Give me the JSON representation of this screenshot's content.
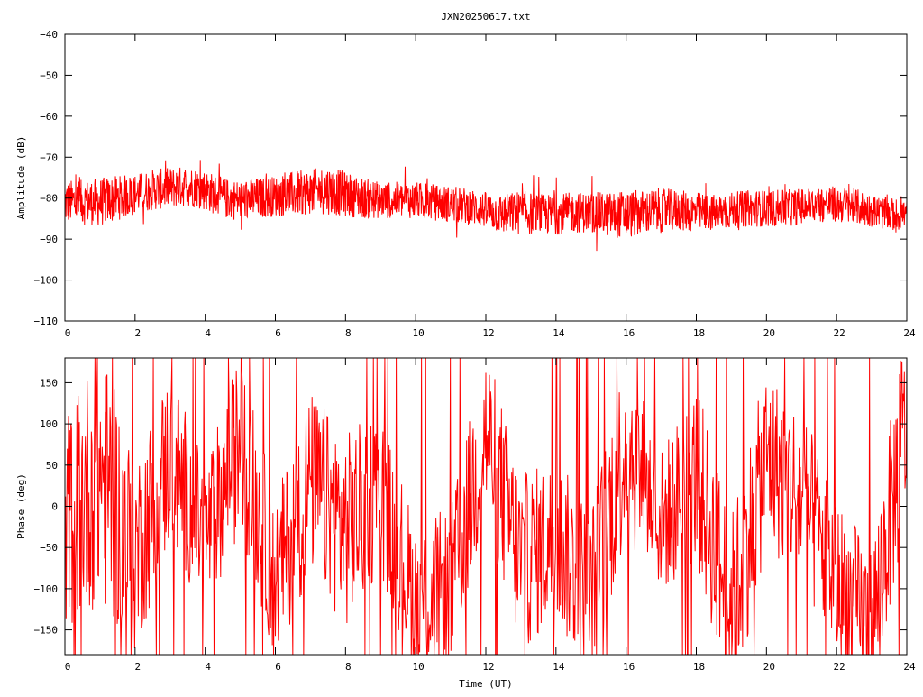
{
  "colors": {
    "series": "#ff0000",
    "axis": "#000000",
    "background": "#ffffff"
  },
  "chart_data": [
    {
      "type": "line",
      "title": "JXN20250617.txt",
      "xlabel": "",
      "ylabel": "Amplitude (dB)",
      "xlim": [
        0,
        24
      ],
      "ylim": [
        -110,
        -40
      ],
      "xticks": [
        0,
        2,
        4,
        6,
        8,
        10,
        12,
        14,
        16,
        18,
        20,
        22,
        24
      ],
      "yticks": [
        -110,
        -100,
        -90,
        -80,
        -70,
        -60,
        -50,
        -40
      ],
      "grid": false,
      "series": [
        {
          "color": "#ff0000",
          "x": [
            0,
            0.5,
            1,
            1.5,
            2,
            2.5,
            3,
            3.5,
            4,
            4.5,
            5,
            5.5,
            6,
            6.5,
            7,
            7.5,
            8,
            8.5,
            9,
            9.5,
            10,
            10.5,
            11,
            11.5,
            12,
            12.5,
            13,
            13.5,
            14,
            14.5,
            15,
            15.5,
            16,
            16.5,
            17,
            17.5,
            18,
            18.5,
            19,
            19.5,
            20,
            20.5,
            21,
            21.5,
            22,
            22.5,
            23,
            23.5,
            24
          ],
          "center": [
            -81,
            -81,
            -81,
            -80,
            -79,
            -78,
            -77.5,
            -77,
            -78,
            -80,
            -80.5,
            -80,
            -79.5,
            -79,
            -78.5,
            -78,
            -79,
            -80,
            -80.5,
            -80.5,
            -80.5,
            -81,
            -81.5,
            -82,
            -83,
            -84,
            -83.5,
            -84,
            -84,
            -83.5,
            -83.5,
            -84,
            -84,
            -83.5,
            -83,
            -83,
            -83.5,
            -83.5,
            -83,
            -82.5,
            -82.5,
            -82.5,
            -82,
            -81.5,
            -81.5,
            -82,
            -83,
            -84,
            -84
          ],
          "half_spread": [
            5.5,
            5.5,
            6,
            5.5,
            5,
            5,
            5,
            5,
            5,
            5,
            5,
            5,
            5,
            5.5,
            5.5,
            6,
            5.5,
            5,
            4.5,
            4.5,
            4.5,
            4.5,
            4.5,
            4.5,
            4.5,
            5,
            5.5,
            5,
            5,
            5,
            5,
            5.5,
            6,
            5.5,
            5.5,
            5,
            5,
            4.5,
            4.5,
            4.5,
            4.5,
            4.5,
            4.5,
            4.5,
            4.5,
            4.5,
            4,
            4,
            4
          ]
        }
      ]
    },
    {
      "type": "line",
      "title": "",
      "xlabel": "Time (UT)",
      "ylabel": "Phase (deg)",
      "xlim": [
        0,
        24
      ],
      "ylim": [
        -180,
        180
      ],
      "xticks": [
        0,
        2,
        4,
        6,
        8,
        10,
        12,
        14,
        16,
        18,
        20,
        22,
        24
      ],
      "yticks": [
        -150,
        -100,
        -50,
        0,
        50,
        100,
        150
      ],
      "grid": false,
      "series": [
        {
          "color": "#ff0000",
          "x": [
            0,
            1,
            2,
            3,
            4,
            5,
            6,
            7,
            8,
            9,
            10,
            11,
            12,
            13,
            14,
            15,
            16,
            17,
            18,
            19,
            20,
            21,
            22,
            23,
            24
          ],
          "center": [
            -20,
            40,
            -60,
            60,
            -40,
            80,
            -90,
            30,
            -30,
            20,
            -120,
            -100,
            90,
            -70,
            -40,
            -110,
            80,
            -20,
            40,
            -130,
            60,
            10,
            -90,
            -150,
            110
          ],
          "half_spread": [
            130,
            160,
            120,
            110,
            90,
            110,
            100,
            110,
            120,
            100,
            100,
            100,
            110,
            110,
            100,
            110,
            120,
            90,
            110,
            120,
            110,
            110,
            100,
            100,
            130
          ]
        }
      ]
    }
  ]
}
